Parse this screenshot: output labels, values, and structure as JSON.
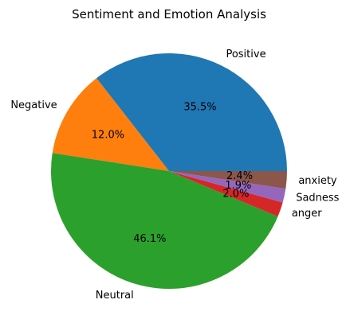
{
  "chart_data": {
    "type": "pie",
    "title": "Sentiment and Emotion Analysis",
    "slices": [
      {
        "label": "Positive",
        "value": 35.5,
        "pct_label": "35.5%",
        "color": "#1f77b4"
      },
      {
        "label": "Negative",
        "value": 12.0,
        "pct_label": "12.0%",
        "color": "#ff7f0e"
      },
      {
        "label": "Neutral",
        "value": 46.1,
        "pct_label": "46.1%",
        "color": "#2ca02c"
      },
      {
        "label": "anger",
        "value": 2.0,
        "pct_label": "2.0%",
        "color": "#d62728"
      },
      {
        "label": "Sadness",
        "value": 1.9,
        "pct_label": "1.9%",
        "color": "#9467bd"
      },
      {
        "label": "anxiety",
        "value": 2.4,
        "pct_label": "2.4%",
        "color": "#8c564b"
      }
    ],
    "start_angle_deg": 0,
    "direction": "counterclockwise",
    "legend": "none"
  }
}
